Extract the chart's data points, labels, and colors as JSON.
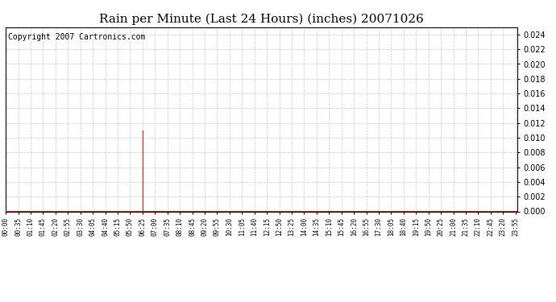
{
  "title": "Rain per Minute (Last 24 Hours) (inches) 20071026",
  "copyright": "Copyright 2007 Cartronics.com",
  "ylim": [
    0.0,
    0.025
  ],
  "yticks": [
    0.0,
    0.002,
    0.004,
    0.006,
    0.008,
    0.01,
    0.012,
    0.014,
    0.016,
    0.018,
    0.02,
    0.022,
    0.024
  ],
  "spike_minutes": [
    385,
    386,
    387,
    420
  ],
  "spike_value": 0.011,
  "bar_color": "#ff0000",
  "bg_color": "#ffffff",
  "grid_color": "#bbbbbb",
  "title_fontsize": 11,
  "copyright_fontsize": 7,
  "xtick_interval": 35,
  "total_minutes": 1440
}
